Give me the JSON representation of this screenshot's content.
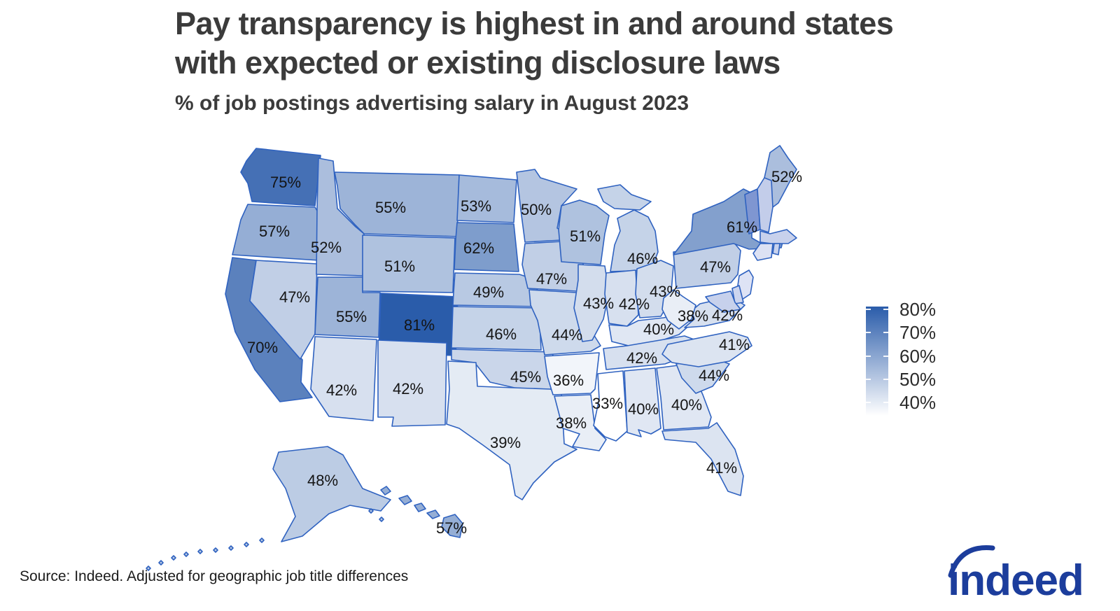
{
  "header": {
    "title_line1": "Pay transparency is highest in and around states",
    "title_line2": "with expected or existing disclosure laws",
    "subtitle": "% of job postings advertising salary in August 2023"
  },
  "chart_data": {
    "type": "choropleth",
    "title": "Pay transparency is highest in and around states with expected or existing disclosure laws",
    "subtitle": "% of job postings advertising salary in August 2023",
    "unit": "%",
    "color_scale": {
      "low_value": 33,
      "high_value": 81,
      "low_color": "#ffffff",
      "high_color": "#2a5caa",
      "border_color": "#2f62c0",
      "label_color": "#141414"
    },
    "legend": {
      "position": "right",
      "ticks": [
        "80%",
        "70%",
        "60%",
        "50%",
        "40%"
      ]
    },
    "states": [
      {
        "abbr": "WA",
        "name": "Washington",
        "value": 75,
        "label": "75%"
      },
      {
        "abbr": "OR",
        "name": "Oregon",
        "value": 57,
        "label": "57%"
      },
      {
        "abbr": "CA",
        "name": "California",
        "value": 70,
        "label": "70%"
      },
      {
        "abbr": "NV",
        "name": "Nevada",
        "value": 47,
        "label": "47%"
      },
      {
        "abbr": "ID",
        "name": "Idaho",
        "value": 52,
        "label": "52%"
      },
      {
        "abbr": "UT",
        "name": "Utah",
        "value": 55,
        "label": "55%"
      },
      {
        "abbr": "AZ",
        "name": "Arizona",
        "value": 42,
        "label": "42%"
      },
      {
        "abbr": "MT",
        "name": "Montana",
        "value": 55,
        "label": "55%"
      },
      {
        "abbr": "WY",
        "name": "Wyoming",
        "value": 51,
        "label": "51%"
      },
      {
        "abbr": "CO",
        "name": "Colorado",
        "value": 81,
        "label": "81%"
      },
      {
        "abbr": "NM",
        "name": "New Mexico",
        "value": 42,
        "label": "42%"
      },
      {
        "abbr": "ND",
        "name": "North Dakota",
        "value": 53,
        "label": "53%"
      },
      {
        "abbr": "SD",
        "name": "South Dakota",
        "value": 62,
        "label": "62%"
      },
      {
        "abbr": "NE",
        "name": "Nebraska",
        "value": 49,
        "label": "49%"
      },
      {
        "abbr": "KS",
        "name": "Kansas",
        "value": 46,
        "label": "46%"
      },
      {
        "abbr": "OK",
        "name": "Oklahoma",
        "value": 45,
        "label": "45%"
      },
      {
        "abbr": "TX",
        "name": "Texas",
        "value": 39,
        "label": "39%"
      },
      {
        "abbr": "MN",
        "name": "Minnesota",
        "value": 50,
        "label": "50%"
      },
      {
        "abbr": "IA",
        "name": "Iowa",
        "value": 47,
        "label": "47%"
      },
      {
        "abbr": "MO",
        "name": "Missouri",
        "value": 44,
        "label": "44%"
      },
      {
        "abbr": "AR",
        "name": "Arkansas",
        "value": 36,
        "label": "36%"
      },
      {
        "abbr": "LA",
        "name": "Louisiana",
        "value": 38,
        "label": "38%"
      },
      {
        "abbr": "WI",
        "name": "Wisconsin",
        "value": 51,
        "label": "51%"
      },
      {
        "abbr": "IL",
        "name": "Illinois",
        "value": 43,
        "label": "43%"
      },
      {
        "abbr": "MI",
        "name": "Michigan",
        "value": 46,
        "label": "46%"
      },
      {
        "abbr": "IN",
        "name": "Indiana",
        "value": 42,
        "label": "42%"
      },
      {
        "abbr": "OH",
        "name": "Ohio",
        "value": 43,
        "label": "43%"
      },
      {
        "abbr": "KY",
        "name": "Kentucky",
        "value": 40,
        "label": "40%"
      },
      {
        "abbr": "TN",
        "name": "Tennessee",
        "value": 42,
        "label": "42%"
      },
      {
        "abbr": "MS",
        "name": "Mississippi",
        "value": 33,
        "label": "33%"
      },
      {
        "abbr": "AL",
        "name": "Alabama",
        "value": 40,
        "label": "40%"
      },
      {
        "abbr": "GA",
        "name": "Georgia",
        "value": 40,
        "label": "40%"
      },
      {
        "abbr": "FL",
        "name": "Florida",
        "value": 41,
        "label": "41%"
      },
      {
        "abbr": "SC",
        "name": "South Carolina",
        "value": 44,
        "label": "44%"
      },
      {
        "abbr": "NC",
        "name": "North Carolina",
        "value": 41,
        "label": "41%"
      },
      {
        "abbr": "VA",
        "name": "Virginia",
        "value": 42,
        "label": "42%"
      },
      {
        "abbr": "WV",
        "name": "West Virginia",
        "value": 38,
        "label": "38%"
      },
      {
        "abbr": "PA",
        "name": "Pennsylvania",
        "value": 47,
        "label": "47%"
      },
      {
        "abbr": "NY",
        "name": "New York",
        "value": 61,
        "label": "61%"
      },
      {
        "abbr": "ME",
        "name": "Maine",
        "value": 52,
        "label": "52%"
      },
      {
        "abbr": "AK",
        "name": "Alaska",
        "value": 48,
        "label": "48%"
      },
      {
        "abbr": "HI",
        "name": "Hawaii",
        "value": 57,
        "label": "57%"
      }
    ],
    "states_without_labels": [
      {
        "abbr": "VT",
        "name": "Vermont",
        "fill": "#7f96d1"
      },
      {
        "abbr": "NH",
        "name": "New Hampshire",
        "fill": "#c3cdea"
      },
      {
        "abbr": "MA",
        "name": "Massachusetts",
        "fill": "#c8d1ec"
      },
      {
        "abbr": "CT",
        "name": "Connecticut",
        "fill": "#dce1f3"
      },
      {
        "abbr": "RI",
        "name": "Rhode Island",
        "fill": "#c8d2ed"
      },
      {
        "abbr": "NJ",
        "name": "New Jersey",
        "fill": "#dee3f5"
      },
      {
        "abbr": "DE",
        "name": "Delaware",
        "fill": "#ccd5ef"
      },
      {
        "abbr": "MD",
        "name": "Maryland",
        "fill": "#c7d1ec"
      }
    ]
  },
  "footer": {
    "source": "Source: Indeed. Adjusted for geographic job title differences",
    "logo_text": "indeed",
    "logo_color": "#1c3d9c"
  }
}
